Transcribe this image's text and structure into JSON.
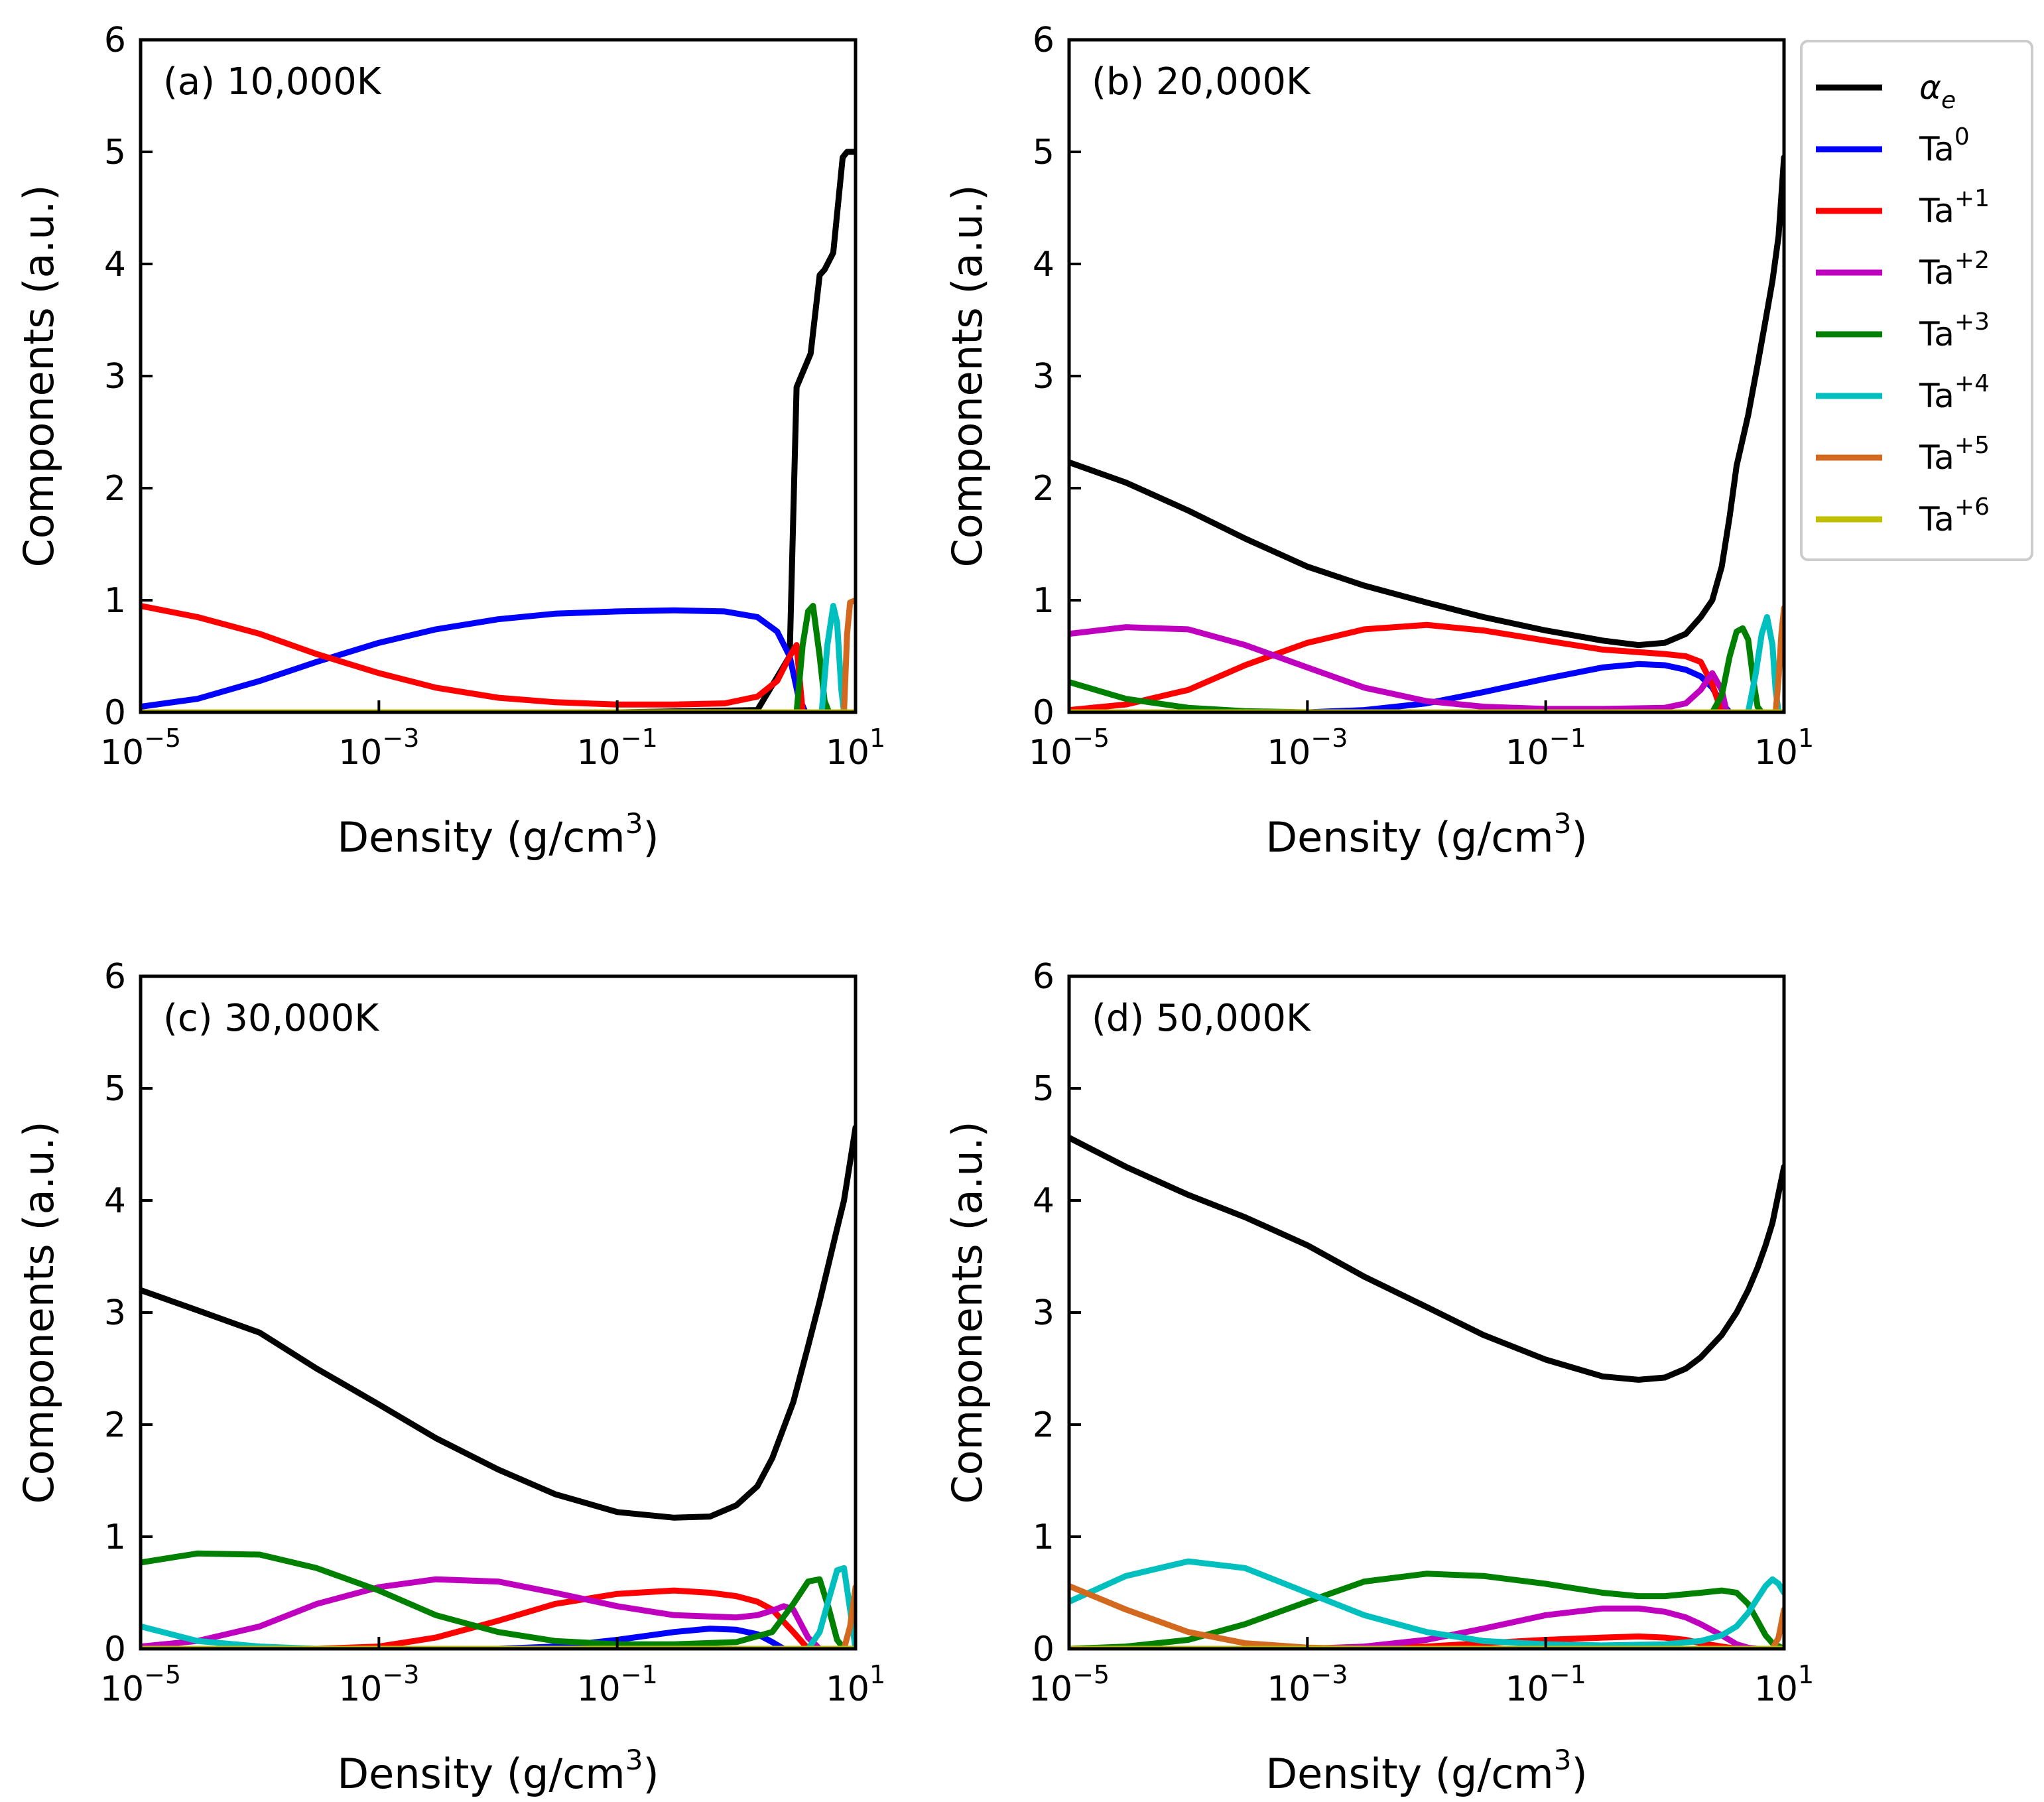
{
  "figure": {
    "axis_xlabel": "Density (g/cm",
    "axis_xlabel_sup": "3",
    "axis_xlabel_end": ")",
    "axis_ylabel": "Components (a.u.)"
  },
  "legend": {
    "placement": "outside-right",
    "entries": [
      {
        "key": "alpha_e",
        "label": "α",
        "sub": "e",
        "sup": "",
        "color": "#000000"
      },
      {
        "key": "Ta0",
        "label": "Ta",
        "sub": "",
        "sup": "0",
        "color": "#0000ff"
      },
      {
        "key": "Ta1",
        "label": "Ta",
        "sub": "",
        "sup": "+1",
        "color": "#ff0000"
      },
      {
        "key": "Ta2",
        "label": "Ta",
        "sub": "",
        "sup": "+2",
        "color": "#bf00bf"
      },
      {
        "key": "Ta3",
        "label": "Ta",
        "sub": "",
        "sup": "+3",
        "color": "#008000"
      },
      {
        "key": "Ta4",
        "label": "Ta",
        "sub": "",
        "sup": "+4",
        "color": "#00bfbf"
      },
      {
        "key": "Ta5",
        "label": "Ta",
        "sub": "",
        "sup": "+5",
        "color": "#d2691e"
      },
      {
        "key": "Ta6",
        "label": "Ta",
        "sub": "",
        "sup": "+6",
        "color": "#bfbf00"
      }
    ]
  },
  "axes_common": {
    "xscale": "log",
    "xlim": [
      1e-05,
      10
    ],
    "ylim": [
      0,
      6
    ],
    "xticks": [
      {
        "v": 1e-05,
        "base": "10",
        "exp": "−5"
      },
      {
        "v": 0.001,
        "base": "10",
        "exp": "−3"
      },
      {
        "v": 0.1,
        "base": "10",
        "exp": "−1"
      },
      {
        "v": 10,
        "base": "10",
        "exp": "1"
      }
    ],
    "yticks": [
      0,
      1,
      2,
      3,
      4,
      5,
      6
    ]
  },
  "chart_data": [
    {
      "type": "line",
      "title": "(a) 10,000K",
      "xlabel": "Density (g/cm3)",
      "ylabel": "Components (a.u.)",
      "series": [
        {
          "name": "alpha_e",
          "x": [
            1e-05,
            0.1,
            1.5,
            2.8,
            3.2,
            3.5,
            4.2,
            5.0,
            5.5,
            6.5,
            7.8,
            8.5,
            10
          ],
          "y": [
            0,
            0,
            0.02,
            0.5,
            2.9,
            3.0,
            3.2,
            3.9,
            3.95,
            4.1,
            4.95,
            5.0,
            5.0
          ]
        },
        {
          "name": "Ta0",
          "x": [
            1e-05,
            3e-05,
            0.0001,
            0.0003,
            0.001,
            0.003,
            0.01,
            0.03,
            0.1,
            0.3,
            0.8,
            1.5,
            2.2,
            2.8,
            3.3,
            3.8
          ],
          "y": [
            0.05,
            0.12,
            0.28,
            0.45,
            0.62,
            0.74,
            0.83,
            0.88,
            0.9,
            0.91,
            0.9,
            0.85,
            0.72,
            0.5,
            0.15,
            0
          ]
        },
        {
          "name": "Ta1",
          "x": [
            1e-05,
            3e-05,
            0.0001,
            0.0003,
            0.001,
            0.003,
            0.01,
            0.03,
            0.1,
            0.3,
            0.8,
            1.5,
            2.2,
            2.8,
            3.2,
            3.6
          ],
          "y": [
            0.95,
            0.85,
            0.7,
            0.52,
            0.35,
            0.22,
            0.13,
            0.09,
            0.07,
            0.07,
            0.08,
            0.14,
            0.28,
            0.5,
            0.6,
            0
          ]
        },
        {
          "name": "Ta2",
          "x": [
            1e-05,
            10
          ],
          "y": [
            0,
            0
          ]
        },
        {
          "name": "Ta3",
          "x": [
            3.2,
            3.6,
            4.0,
            4.4,
            5.0,
            5.5,
            6.0
          ],
          "y": [
            0,
            0.6,
            0.9,
            0.95,
            0.5,
            0.1,
            0
          ]
        },
        {
          "name": "Ta4",
          "x": [
            5.2,
            5.8,
            6.5,
            7.0,
            7.6,
            8.0
          ],
          "y": [
            0,
            0.6,
            0.95,
            0.8,
            0.2,
            0
          ]
        },
        {
          "name": "Ta5",
          "x": [
            8.0,
            8.5,
            9.0,
            10
          ],
          "y": [
            0,
            0.7,
            0.98,
            1.0
          ]
        },
        {
          "name": "Ta6",
          "x": [
            1e-05,
            10
          ],
          "y": [
            0,
            0
          ]
        }
      ]
    },
    {
      "type": "line",
      "title": "(b) 20,000K",
      "xlabel": "Density (g/cm3)",
      "ylabel": "Components (a.u.)",
      "series": [
        {
          "name": "alpha_e",
          "x": [
            1e-05,
            3e-05,
            0.0001,
            0.0003,
            0.001,
            0.003,
            0.01,
            0.03,
            0.1,
            0.3,
            0.6,
            1.0,
            1.5,
            2.0,
            2.5,
            3.0,
            3.5,
            4.0,
            5.0,
            6.0,
            7.0,
            8.0,
            9.0,
            10
          ],
          "y": [
            2.23,
            2.05,
            1.8,
            1.55,
            1.3,
            1.13,
            0.98,
            0.85,
            0.73,
            0.64,
            0.6,
            0.62,
            0.7,
            0.85,
            1.0,
            1.3,
            1.75,
            2.2,
            2.65,
            3.1,
            3.5,
            3.85,
            4.25,
            4.95
          ]
        },
        {
          "name": "Ta0",
          "x": [
            1e-05,
            0.001,
            0.003,
            0.01,
            0.03,
            0.1,
            0.3,
            0.6,
            1.0,
            1.5,
            2.0,
            2.5,
            3.0,
            3.5
          ],
          "y": [
            0,
            0,
            0.02,
            0.08,
            0.18,
            0.3,
            0.4,
            0.43,
            0.42,
            0.38,
            0.32,
            0.22,
            0.08,
            0
          ]
        },
        {
          "name": "Ta1",
          "x": [
            1e-05,
            3e-05,
            0.0001,
            0.0003,
            0.001,
            0.003,
            0.01,
            0.03,
            0.1,
            0.3,
            1.0,
            1.5,
            2.0,
            2.5,
            3.0
          ],
          "y": [
            0.02,
            0.07,
            0.2,
            0.42,
            0.62,
            0.74,
            0.78,
            0.73,
            0.64,
            0.56,
            0.52,
            0.5,
            0.45,
            0.25,
            0
          ]
        },
        {
          "name": "Ta2",
          "x": [
            1e-05,
            3e-05,
            0.0001,
            0.0003,
            0.001,
            0.003,
            0.01,
            0.03,
            0.1,
            0.3,
            1.0,
            1.5,
            2.0,
            2.5,
            3.0,
            3.3
          ],
          "y": [
            0.7,
            0.76,
            0.74,
            0.6,
            0.4,
            0.22,
            0.1,
            0.05,
            0.03,
            0.03,
            0.04,
            0.08,
            0.2,
            0.35,
            0.2,
            0
          ]
        },
        {
          "name": "Ta3",
          "x": [
            1e-05,
            3e-05,
            0.0001,
            0.0003,
            0.001,
            2.5,
            3.0,
            3.5,
            4.0,
            4.5,
            5.0,
            5.5,
            6.0,
            6.5
          ],
          "y": [
            0.27,
            0.12,
            0.04,
            0.01,
            0,
            0,
            0.15,
            0.5,
            0.72,
            0.75,
            0.65,
            0.3,
            0.05,
            0
          ]
        },
        {
          "name": "Ta4",
          "x": [
            5.0,
            5.8,
            6.5,
            7.2,
            8.0,
            8.5,
            9.0
          ],
          "y": [
            0,
            0.35,
            0.7,
            0.85,
            0.6,
            0.2,
            0
          ]
        },
        {
          "name": "Ta5",
          "x": [
            8.5,
            9.0,
            9.5,
            10
          ],
          "y": [
            0,
            0.3,
            0.7,
            0.93
          ]
        },
        {
          "name": "Ta6",
          "x": [
            1e-05,
            10
          ],
          "y": [
            0,
            0
          ]
        }
      ]
    },
    {
      "type": "line",
      "title": "(c) 30,000K",
      "xlabel": "Density (g/cm3)",
      "ylabel": "Components (a.u.)",
      "series": [
        {
          "name": "alpha_e",
          "x": [
            1e-05,
            3e-05,
            0.0001,
            0.0003,
            0.001,
            0.003,
            0.01,
            0.03,
            0.1,
            0.3,
            0.6,
            1.0,
            1.5,
            2.0,
            3.0,
            4.0,
            5.0,
            6.0,
            7.0,
            8.0,
            10
          ],
          "y": [
            3.2,
            3.02,
            2.82,
            2.5,
            2.18,
            1.88,
            1.6,
            1.38,
            1.22,
            1.17,
            1.18,
            1.28,
            1.45,
            1.7,
            2.2,
            2.7,
            3.1,
            3.45,
            3.75,
            4.0,
            4.65
          ]
        },
        {
          "name": "Ta0",
          "x": [
            1e-05,
            0.01,
            0.03,
            0.1,
            0.3,
            0.6,
            1.0,
            1.5,
            2.0,
            2.5
          ],
          "y": [
            0,
            0,
            0.02,
            0.08,
            0.15,
            0.18,
            0.17,
            0.13,
            0.06,
            0
          ]
        },
        {
          "name": "Ta1",
          "x": [
            1e-05,
            0.0003,
            0.001,
            0.003,
            0.01,
            0.03,
            0.1,
            0.3,
            0.6,
            1.0,
            1.5,
            2.0,
            3.0,
            4.0
          ],
          "y": [
            0,
            0,
            0.02,
            0.1,
            0.25,
            0.4,
            0.49,
            0.52,
            0.5,
            0.47,
            0.42,
            0.35,
            0.15,
            0
          ]
        },
        {
          "name": "Ta2",
          "x": [
            1e-05,
            3e-05,
            0.0001,
            0.0003,
            0.001,
            0.003,
            0.01,
            0.03,
            0.1,
            0.3,
            1.0,
            1.5,
            2.0,
            2.5,
            3.0,
            4.0,
            5.0
          ],
          "y": [
            0.02,
            0.07,
            0.2,
            0.4,
            0.55,
            0.62,
            0.6,
            0.5,
            0.38,
            0.3,
            0.28,
            0.3,
            0.34,
            0.38,
            0.35,
            0.1,
            0
          ]
        },
        {
          "name": "Ta3",
          "x": [
            1e-05,
            3e-05,
            0.0001,
            0.0003,
            0.001,
            0.003,
            0.01,
            0.03,
            0.1,
            0.3,
            1.0,
            2.0,
            3.0,
            4.0,
            5.0,
            6.0,
            7.0,
            8.0
          ],
          "y": [
            0.77,
            0.85,
            0.84,
            0.72,
            0.52,
            0.3,
            0.15,
            0.07,
            0.04,
            0.04,
            0.06,
            0.15,
            0.4,
            0.6,
            0.62,
            0.35,
            0.08,
            0
          ]
        },
        {
          "name": "Ta4",
          "x": [
            1e-05,
            3e-05,
            0.0001,
            0.0003,
            4.0,
            5.0,
            6.0,
            7.0,
            8.0,
            9.0,
            10
          ],
          "y": [
            0.2,
            0.07,
            0.02,
            0,
            0,
            0.15,
            0.45,
            0.7,
            0.72,
            0.35,
            0
          ]
        },
        {
          "name": "Ta5",
          "x": [
            8.0,
            9.0,
            10
          ],
          "y": [
            0,
            0.2,
            0.55
          ]
        },
        {
          "name": "Ta6",
          "x": [
            1e-05,
            10
          ],
          "y": [
            0,
            0
          ]
        }
      ]
    },
    {
      "type": "line",
      "title": "(d) 50,000K",
      "xlabel": "Density (g/cm3)",
      "ylabel": "Components (a.u.)",
      "series": [
        {
          "name": "alpha_e",
          "x": [
            1e-05,
            3e-05,
            0.0001,
            0.0003,
            0.001,
            0.003,
            0.01,
            0.03,
            0.1,
            0.3,
            0.6,
            1.0,
            1.5,
            2.0,
            3.0,
            4.0,
            5.0,
            6.0,
            7.0,
            8.0,
            10
          ],
          "y": [
            4.56,
            4.3,
            4.05,
            3.85,
            3.6,
            3.32,
            3.05,
            2.8,
            2.58,
            2.43,
            2.4,
            2.42,
            2.5,
            2.6,
            2.8,
            3.0,
            3.2,
            3.4,
            3.6,
            3.8,
            4.3
          ]
        },
        {
          "name": "Ta0",
          "x": [
            1e-05,
            10
          ],
          "y": [
            0,
            0
          ]
        },
        {
          "name": "Ta1",
          "x": [
            1e-05,
            0.001,
            0.01,
            0.03,
            0.1,
            0.3,
            0.6,
            1.0,
            1.5,
            2.0,
            3.0,
            4.0
          ],
          "y": [
            0,
            0,
            0.02,
            0.05,
            0.08,
            0.1,
            0.11,
            0.1,
            0.08,
            0.05,
            0.02,
            0
          ]
        },
        {
          "name": "Ta2",
          "x": [
            1e-05,
            0.001,
            0.003,
            0.01,
            0.03,
            0.1,
            0.3,
            0.6,
            1.0,
            1.5,
            2.0,
            3.0,
            4.0,
            5.0,
            6.0
          ],
          "y": [
            0,
            0,
            0.02,
            0.08,
            0.18,
            0.3,
            0.36,
            0.36,
            0.33,
            0.28,
            0.22,
            0.12,
            0.04,
            0.01,
            0
          ]
        },
        {
          "name": "Ta3",
          "x": [
            1e-05,
            3e-05,
            0.0001,
            0.0003,
            0.001,
            0.003,
            0.01,
            0.03,
            0.1,
            0.3,
            0.6,
            1.0,
            2.0,
            3.0,
            4.0,
            5.0,
            6.0,
            7.0,
            8.0,
            10
          ],
          "y": [
            0,
            0.02,
            0.08,
            0.22,
            0.42,
            0.6,
            0.67,
            0.65,
            0.58,
            0.5,
            0.47,
            0.47,
            0.5,
            0.52,
            0.5,
            0.4,
            0.25,
            0.12,
            0.05,
            0
          ]
        },
        {
          "name": "Ta4",
          "x": [
            1e-05,
            3e-05,
            0.0001,
            0.0003,
            0.001,
            0.003,
            0.01,
            0.03,
            0.1,
            0.3,
            1.0,
            2.0,
            3.0,
            4.0,
            5.0,
            6.0,
            7.0,
            8.0,
            9.0,
            10
          ],
          "y": [
            0.42,
            0.65,
            0.78,
            0.72,
            0.5,
            0.3,
            0.15,
            0.07,
            0.04,
            0.03,
            0.04,
            0.07,
            0.12,
            0.2,
            0.32,
            0.45,
            0.56,
            0.62,
            0.58,
            0.5
          ]
        },
        {
          "name": "Ta5",
          "x": [
            1e-05,
            3e-05,
            0.0001,
            0.0003,
            0.001,
            0.003,
            8.0,
            9.0,
            10
          ],
          "y": [
            0.56,
            0.35,
            0.15,
            0.05,
            0.01,
            0,
            0,
            0.1,
            0.35
          ]
        },
        {
          "name": "Ta6",
          "x": [
            1e-05,
            10
          ],
          "y": [
            0,
            0
          ]
        }
      ]
    }
  ]
}
